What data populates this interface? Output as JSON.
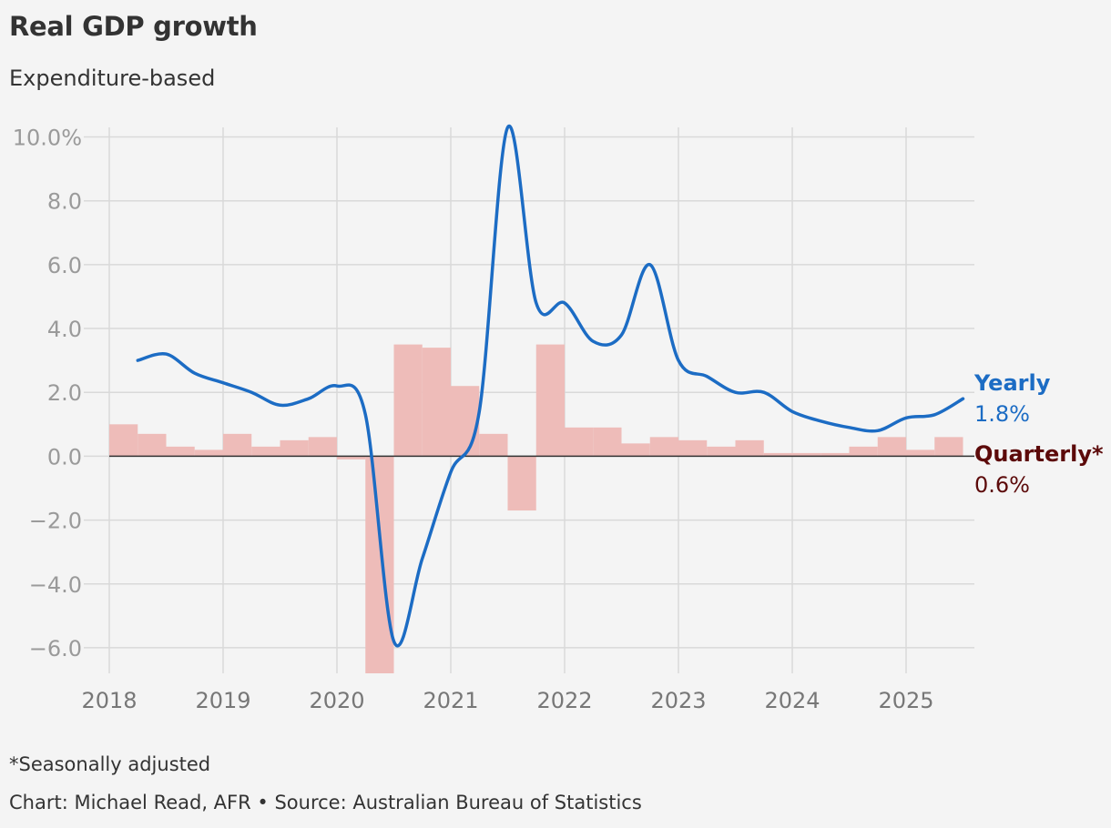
{
  "header": {
    "title": "Real GDP growth",
    "subtitle": "Expenditure-based"
  },
  "footer": {
    "footnote": "*Seasonally adjusted",
    "credit": "Chart: Michael Read, AFR • Source: Australian Bureau of Statistics"
  },
  "colors": {
    "yearly": "#1c6cc4",
    "quarterly_label": "#5c0a0a",
    "quarterly_bar": "#eebcb9",
    "grid": "#d9d9d9",
    "zero_line": "#333333"
  },
  "chart_data": {
    "type": "bar",
    "title": "Real GDP growth",
    "subtitle": "Expenditure-based",
    "xlabel": "",
    "ylabel": "",
    "ylim": [
      -6.8,
      10.3
    ],
    "xlim": [
      2018.0,
      2025.6
    ],
    "grid": true,
    "yticks": [
      {
        "value": 10,
        "label": "10.0%"
      },
      {
        "value": 8,
        "label": "8.0"
      },
      {
        "value": 6,
        "label": "6.0"
      },
      {
        "value": 4,
        "label": "4.0"
      },
      {
        "value": 2,
        "label": "2.0"
      },
      {
        "value": 0,
        "label": "0.0"
      },
      {
        "value": -2,
        "label": "−2.0"
      },
      {
        "value": -4,
        "label": "−4.0"
      },
      {
        "value": -6,
        "label": "−6.0"
      }
    ],
    "xticks": [
      "2018",
      "2019",
      "2020",
      "2021",
      "2022",
      "2023",
      "2024",
      "2025"
    ],
    "series": [
      {
        "name": "Quarterly*",
        "kind": "bar",
        "latest_label": "0.6%",
        "x": [
          "2018-Q1",
          "2018-Q2",
          "2018-Q3",
          "2018-Q4",
          "2019-Q1",
          "2019-Q2",
          "2019-Q3",
          "2019-Q4",
          "2020-Q1",
          "2020-Q2",
          "2020-Q3",
          "2020-Q4",
          "2021-Q1",
          "2021-Q2",
          "2021-Q3",
          "2021-Q4",
          "2022-Q1",
          "2022-Q2",
          "2022-Q3",
          "2022-Q4",
          "2023-Q1",
          "2023-Q2",
          "2023-Q3",
          "2023-Q4",
          "2024-Q1",
          "2024-Q2",
          "2024-Q3",
          "2024-Q4",
          "2025-Q1",
          "2025-Q2"
        ],
        "values": [
          1.0,
          0.7,
          0.3,
          0.2,
          0.7,
          0.3,
          0.5,
          0.6,
          -0.1,
          -6.8,
          3.5,
          3.4,
          2.2,
          0.7,
          -1.7,
          3.5,
          0.9,
          0.9,
          0.4,
          0.6,
          0.5,
          0.3,
          0.5,
          0.1,
          0.1,
          0.1,
          0.3,
          0.6,
          0.2,
          0.6
        ]
      },
      {
        "name": "Yearly",
        "kind": "line",
        "latest_label": "1.8%",
        "x": [
          "2018-Q1",
          "2018-Q2",
          "2018-Q3",
          "2018-Q4",
          "2019-Q1",
          "2019-Q2",
          "2019-Q3",
          "2019-Q4",
          "2020-Q1",
          "2020-Q2",
          "2020-Q3",
          "2020-Q4",
          "2021-Q1",
          "2021-Q2",
          "2021-Q3",
          "2021-Q4",
          "2022-Q1",
          "2022-Q2",
          "2022-Q3",
          "2022-Q4",
          "2023-Q1",
          "2023-Q2",
          "2023-Q3",
          "2023-Q4",
          "2024-Q1",
          "2024-Q2",
          "2024-Q3",
          "2024-Q4",
          "2025-Q1",
          "2025-Q2"
        ],
        "values": [
          3.0,
          3.2,
          2.6,
          2.3,
          2.0,
          1.6,
          1.8,
          2.2,
          1.3,
          -5.8,
          -3.2,
          -0.5,
          1.4,
          10.3,
          4.8,
          4.8,
          3.6,
          3.8,
          6.0,
          3.0,
          2.5,
          2.0,
          2.0,
          1.4,
          1.1,
          0.9,
          0.8,
          1.2,
          1.3,
          1.8
        ]
      }
    ],
    "annotations": [
      {
        "series": "Yearly",
        "text": "Yearly",
        "value_text": "1.8%"
      },
      {
        "series": "Quarterly*",
        "text": "Quarterly*",
        "value_text": "0.6%"
      }
    ]
  }
}
